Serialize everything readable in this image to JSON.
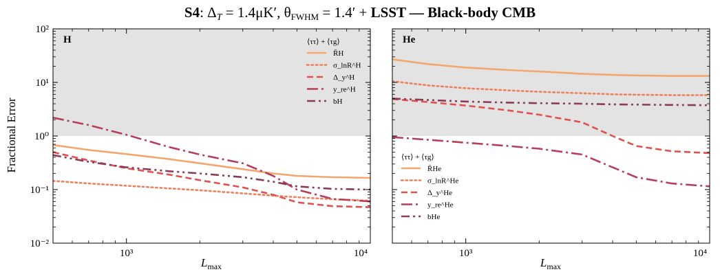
{
  "figure": {
    "title_bold_prefix": "S4",
    "title_middle": ": Δ",
    "title_T_sub": "T",
    "title_equation": " = 1.4μK′, θ",
    "title_fwhm_sub": "FWHM",
    "title_tail": " = 1.4′ + ",
    "title_bold_suffix": "LSST — Black-body CMB",
    "ylabel": "Fractional Error",
    "xlabel_main": "L",
    "xlabel_sub": "max"
  },
  "chart_data": [
    {
      "type": "line",
      "panel_label": "H",
      "xscale": "log",
      "yscale": "log",
      "xlim": [
        500,
        10000
      ],
      "ylim": [
        0.01,
        100
      ],
      "shaded_region": [
        1,
        100
      ],
      "x_tick_labels": [
        "10³",
        "10⁴"
      ],
      "y_tick_labels": [
        "10⁻²",
        "10⁻¹",
        "10⁰",
        "10¹",
        "10²"
      ],
      "legend_title": "⟨ττ⟩ + ⟨τg⟩",
      "legend_position": "top-right",
      "series": [
        {
          "name": "R̄H",
          "color": "#f3a66e",
          "dash": "solid",
          "x": [
            500,
            700,
            1000,
            1500,
            2000,
            3000,
            4000,
            5000,
            7000,
            10000
          ],
          "y": [
            0.68,
            0.55,
            0.46,
            0.37,
            0.31,
            0.24,
            0.2,
            0.18,
            0.17,
            0.165
          ]
        },
        {
          "name": "σ_lnR^H",
          "color": "#f07e5c",
          "dash": "dotted",
          "x": [
            500,
            700,
            1000,
            1500,
            2000,
            3000,
            4000,
            5000,
            7000,
            10000
          ],
          "y": [
            0.145,
            0.13,
            0.118,
            0.105,
            0.097,
            0.085,
            0.077,
            0.072,
            0.066,
            0.062
          ]
        },
        {
          "name": "Δ_y^H",
          "color": "#e0504f",
          "dash": "dashed",
          "x": [
            500,
            700,
            1000,
            1500,
            2000,
            3000,
            4000,
            5000,
            7000,
            10000
          ],
          "y": [
            0.5,
            0.35,
            0.25,
            0.19,
            0.15,
            0.11,
            0.08,
            0.058,
            0.049,
            0.047
          ]
        },
        {
          "name": "y_re^H",
          "color": "#b53e5c",
          "dash": "dashdot",
          "x": [
            500,
            700,
            1000,
            1500,
            2000,
            3000,
            4000,
            5000,
            7000,
            10000
          ],
          "y": [
            2.2,
            1.6,
            1.05,
            0.62,
            0.45,
            0.31,
            0.18,
            0.1,
            0.067,
            0.06
          ]
        },
        {
          "name": "bH",
          "color": "#8a3a5a",
          "dash": "dashdotdot",
          "x": [
            500,
            700,
            1000,
            1500,
            2000,
            3000,
            4000,
            5000,
            7000,
            10000
          ],
          "y": [
            0.44,
            0.33,
            0.26,
            0.22,
            0.2,
            0.17,
            0.14,
            0.115,
            0.103,
            0.1
          ]
        }
      ]
    },
    {
      "type": "line",
      "panel_label": "He",
      "xscale": "log",
      "yscale": "log",
      "xlim": [
        500,
        10000
      ],
      "ylim": [
        0.01,
        100
      ],
      "shaded_region": [
        1,
        100
      ],
      "x_tick_labels": [
        "10³",
        "10⁴"
      ],
      "legend_title": "⟨ττ⟩ + ⟨τg⟩",
      "legend_position": "left",
      "series": [
        {
          "name": "R̄He",
          "color": "#f3a66e",
          "dash": "solid",
          "x": [
            500,
            700,
            1000,
            1500,
            2000,
            3000,
            4000,
            5000,
            7000,
            10000
          ],
          "y": [
            27,
            22,
            19,
            17,
            16,
            14.5,
            13.8,
            13.5,
            13.2,
            13.2
          ]
        },
        {
          "name": "σ_lnR^He",
          "color": "#f07e5c",
          "dash": "dotted",
          "x": [
            500,
            700,
            1000,
            1500,
            2000,
            3000,
            4000,
            5000,
            7000,
            10000
          ],
          "y": [
            10.5,
            8.8,
            7.8,
            7.1,
            6.7,
            6.3,
            6.0,
            5.9,
            5.8,
            5.8
          ]
        },
        {
          "name": "Δ_y^He",
          "color": "#e0504f",
          "dash": "dashed",
          "x": [
            500,
            700,
            1000,
            1500,
            2000,
            3000,
            4000,
            5000,
            7000,
            10000
          ],
          "y": [
            4.9,
            4.3,
            3.7,
            3.0,
            2.5,
            1.8,
            1.0,
            0.65,
            0.52,
            0.48
          ]
        },
        {
          "name": "y_re^He",
          "color": "#b53e5c",
          "dash": "dashdot",
          "x": [
            500,
            700,
            1000,
            1500,
            2000,
            3000,
            4000,
            5000,
            7000,
            10000
          ],
          "y": [
            0.95,
            0.85,
            0.75,
            0.65,
            0.58,
            0.45,
            0.26,
            0.17,
            0.13,
            0.115
          ]
        },
        {
          "name": "bHe",
          "color": "#8a3a5a",
          "dash": "dashdotdot",
          "x": [
            500,
            700,
            1000,
            1500,
            2000,
            3000,
            4000,
            5000,
            7000,
            10000
          ],
          "y": [
            5.0,
            4.7,
            4.4,
            4.2,
            4.1,
            4.0,
            3.9,
            3.85,
            3.8,
            3.75
          ]
        }
      ]
    }
  ]
}
